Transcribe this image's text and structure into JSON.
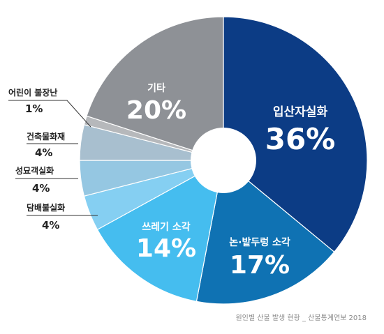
{
  "chart_data": {
    "type": "pie",
    "donut": true,
    "categories": [
      "입산자실화",
      "논·밭두렁 소각",
      "쓰레기 소각",
      "담배불실화",
      "성묘객실화",
      "건축물화재",
      "어린이 불장난",
      "기타"
    ],
    "values": [
      36,
      17,
      14,
      4,
      4,
      4,
      1,
      20
    ],
    "value_labels": [
      "36%",
      "17%",
      "14%",
      "4%",
      "4%",
      "4%",
      "1%",
      "20%"
    ],
    "colors": [
      "#0c3c85",
      "#0f72b3",
      "#45bdef",
      "#85cff2",
      "#95c7e2",
      "#a8bfcf",
      "#b6b8bb",
      "#8e9196"
    ],
    "legend": "none"
  },
  "source": "원인별 산불 발생 현황 _ 산불통계연보 2018"
}
